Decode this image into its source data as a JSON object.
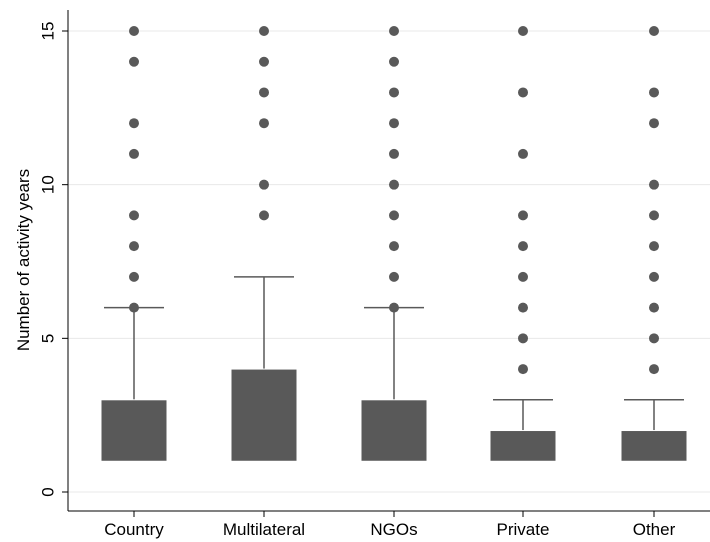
{
  "chart_data": {
    "type": "boxplot",
    "title": "",
    "xlabel": "",
    "ylabel": "Number of activity years",
    "ylim": [
      -1.2,
      15.6
    ],
    "yticks": [
      0,
      5,
      10,
      15
    ],
    "grid": "horizontal",
    "legend": "none",
    "colors": {
      "box": "#595959",
      "whisker": "#595959",
      "outlier": "#595959",
      "grid": "#e8e8e8"
    },
    "categories": [
      "Country",
      "Multilateral",
      "NGOs",
      "Private",
      "Other"
    ],
    "boxes": [
      {
        "name": "Country",
        "whisker_low": 1,
        "q1": 1,
        "median": 1,
        "q3": 3,
        "whisker_high": 6,
        "outliers": [
          6,
          7,
          8,
          9,
          11,
          12,
          14,
          15
        ]
      },
      {
        "name": "Multilateral",
        "whisker_low": 1,
        "q1": 1,
        "median": 1,
        "q3": 4,
        "whisker_high": 7,
        "outliers": [
          9,
          10,
          12,
          13,
          14,
          15
        ]
      },
      {
        "name": "NGOs",
        "whisker_low": 1,
        "q1": 1,
        "median": 1,
        "q3": 3,
        "whisker_high": 6,
        "outliers": [
          6,
          7,
          8,
          9,
          10,
          11,
          12,
          13,
          14,
          15
        ]
      },
      {
        "name": "Private",
        "whisker_low": 1,
        "q1": 1,
        "median": 1,
        "q3": 2,
        "whisker_high": 3,
        "outliers": [
          4,
          5,
          6,
          7,
          8,
          9,
          11,
          13,
          15
        ]
      },
      {
        "name": "Other",
        "whisker_low": 1,
        "q1": 1,
        "median": 1,
        "q3": 2,
        "whisker_high": 3,
        "outliers": [
          4,
          5,
          6,
          7,
          8,
          9,
          10,
          12,
          13,
          15
        ]
      }
    ]
  }
}
